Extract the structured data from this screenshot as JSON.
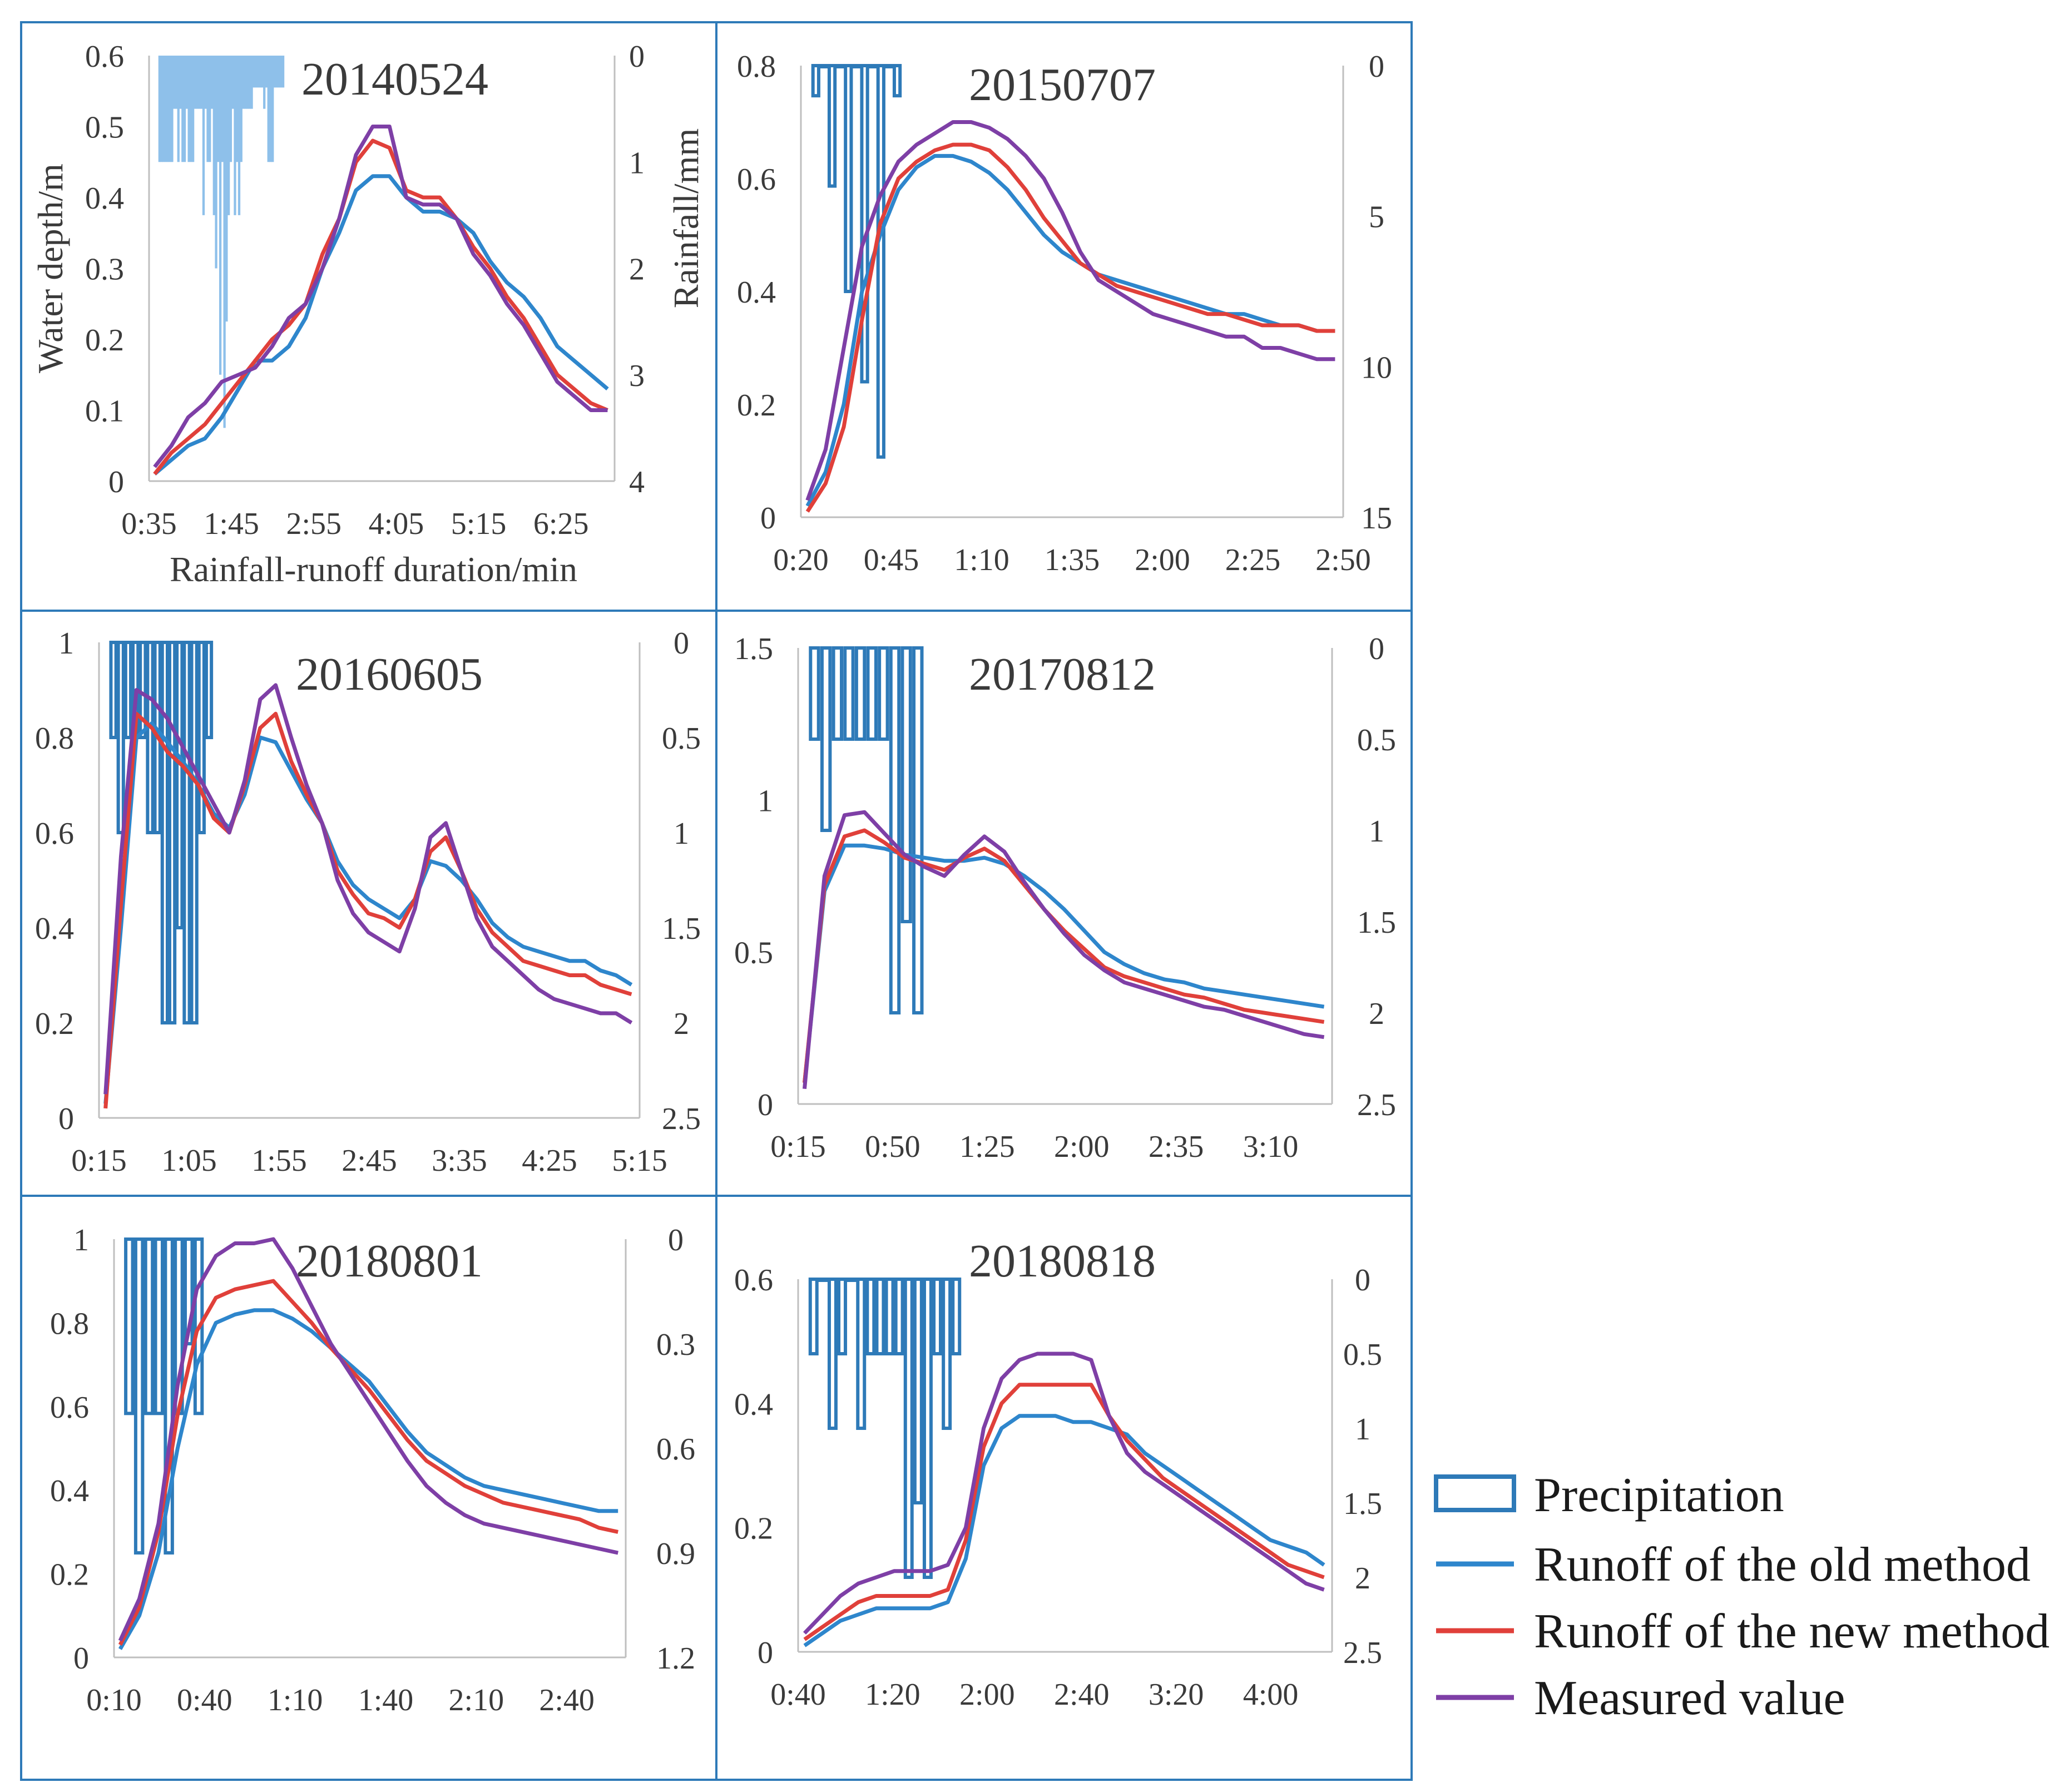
{
  "colors": {
    "precip": "#2e7ab8",
    "precip_fill": "#8ec0ea",
    "old": "#2e86cc",
    "new": "#e0403a",
    "measured": "#7e3fa6",
    "frame": "#2e7ab8",
    "axis": "#bfbfbf"
  },
  "legend": {
    "precipitation": "Precipitation",
    "old": "Runoff of the old method",
    "new": "Runoff of the new method",
    "measured": "Measured value"
  },
  "chart_data": [
    {
      "type": "line",
      "title": "20140524",
      "xlabel": "Rainfall-runoff duration/min",
      "ylabel": "Water depth/m",
      "y2label": "Rainfall/mm",
      "ylim": [
        0,
        0.6
      ],
      "y_ticks": [
        "0",
        "0.1",
        "0.2",
        "0.3",
        "0.4",
        "0.5",
        "0.6"
      ],
      "y2lim": [
        0,
        4
      ],
      "y2_ticks": [
        "0",
        "1",
        "2",
        "3",
        "4"
      ],
      "x_ticks": [
        "0:35",
        "1:45",
        "2:55",
        "4:05",
        "5:15",
        "6:25"
      ],
      "precip_fill": true,
      "precip_x_end": 0.29,
      "precip": [
        1.0,
        1.0,
        1.0,
        1.0,
        1.0,
        1.0,
        1.0,
        0.5,
        0.5,
        1.0,
        0.5,
        1.0,
        1.0,
        0.5,
        1.0,
        1.0,
        1.0,
        0.5,
        0.5,
        0.5,
        0.5,
        1.5,
        0.5,
        1.0,
        1.0,
        0.5,
        1.5,
        2.0,
        1.0,
        3.0,
        1.0,
        3.5,
        2.5,
        1.5,
        1.0,
        0.5,
        1.5,
        1.0,
        1.5,
        1.0,
        0.5,
        0.5,
        0.5,
        0.5,
        0.5,
        0.3,
        0.3,
        0.3,
        0.3,
        0.3,
        0.5,
        0.3,
        1.0,
        1.0,
        1.0,
        0.3,
        0.3,
        0.3,
        0.3,
        0.3
      ],
      "series": [
        {
          "name": "Runoff of the old method",
          "values": [
            0.01,
            0.03,
            0.05,
            0.06,
            0.09,
            0.13,
            0.17,
            0.17,
            0.19,
            0.23,
            0.3,
            0.35,
            0.41,
            0.43,
            0.43,
            0.4,
            0.38,
            0.38,
            0.37,
            0.35,
            0.31,
            0.28,
            0.26,
            0.23,
            0.19,
            0.17,
            0.15,
            0.13
          ]
        },
        {
          "name": "Runoff of the new method",
          "values": [
            0.01,
            0.04,
            0.06,
            0.08,
            0.11,
            0.14,
            0.17,
            0.2,
            0.22,
            0.25,
            0.32,
            0.37,
            0.45,
            0.48,
            0.47,
            0.41,
            0.4,
            0.4,
            0.37,
            0.33,
            0.3,
            0.26,
            0.23,
            0.19,
            0.15,
            0.13,
            0.11,
            0.1
          ]
        },
        {
          "name": "Measured value",
          "values": [
            0.02,
            0.05,
            0.09,
            0.11,
            0.14,
            0.15,
            0.16,
            0.19,
            0.23,
            0.25,
            0.3,
            0.37,
            0.46,
            0.5,
            0.5,
            0.4,
            0.39,
            0.39,
            0.37,
            0.32,
            0.29,
            0.25,
            0.22,
            0.18,
            0.14,
            0.12,
            0.1,
            0.1
          ]
        }
      ]
    },
    {
      "type": "line",
      "title": "20150707",
      "ylim": [
        0,
        0.8
      ],
      "y_ticks": [
        "0",
        "0.2",
        "0.4",
        "0.6",
        "0.8"
      ],
      "y2lim": [
        0,
        15
      ],
      "y2_ticks": [
        "0",
        "5",
        "10",
        "15"
      ],
      "x_ticks": [
        "0:20",
        "0:45",
        "1:10",
        "1:35",
        "2:00",
        "2:25",
        "2:50"
      ],
      "precip_x_end": 0.185,
      "precip": [
        1,
        0,
        4,
        0,
        7.5,
        0,
        10.5,
        0,
        13,
        0,
        1
      ],
      "series": [
        {
          "name": "Runoff of the old method",
          "values": [
            0.02,
            0.08,
            0.2,
            0.4,
            0.5,
            0.58,
            0.62,
            0.64,
            0.64,
            0.63,
            0.61,
            0.58,
            0.54,
            0.5,
            0.47,
            0.45,
            0.43,
            0.42,
            0.41,
            0.4,
            0.39,
            0.38,
            0.37,
            0.36,
            0.36,
            0.35,
            0.34,
            0.34,
            0.33,
            0.33
          ]
        },
        {
          "name": "Runoff of the new method",
          "values": [
            0.01,
            0.06,
            0.16,
            0.35,
            0.52,
            0.6,
            0.63,
            0.65,
            0.66,
            0.66,
            0.65,
            0.62,
            0.58,
            0.53,
            0.49,
            0.45,
            0.43,
            0.41,
            0.4,
            0.39,
            0.38,
            0.37,
            0.36,
            0.36,
            0.35,
            0.34,
            0.34,
            0.34,
            0.33,
            0.33
          ]
        },
        {
          "name": "Measured value",
          "values": [
            0.03,
            0.12,
            0.3,
            0.48,
            0.57,
            0.63,
            0.66,
            0.68,
            0.7,
            0.7,
            0.69,
            0.67,
            0.64,
            0.6,
            0.54,
            0.47,
            0.42,
            0.4,
            0.38,
            0.36,
            0.35,
            0.34,
            0.33,
            0.32,
            0.32,
            0.3,
            0.3,
            0.29,
            0.28,
            0.28
          ]
        }
      ]
    },
    {
      "type": "line",
      "title": "20160605",
      "ylim": [
        0,
        1
      ],
      "y_ticks": [
        "0",
        "0.2",
        "0.4",
        "0.6",
        "0.8",
        "1"
      ],
      "y2lim": [
        0,
        2.5
      ],
      "y2_ticks": [
        "0",
        "0.5",
        "1",
        "1.5",
        "2",
        "2.5"
      ],
      "x_ticks": [
        "0:15",
        "1:05",
        "1:55",
        "2:45",
        "3:35",
        "4:25",
        "5:15"
      ],
      "precip_x_end": 0.21,
      "precip": [
        0.5,
        1.0,
        0.5,
        0.5,
        0.5,
        1.0,
        1.0,
        2.0,
        2.0,
        1.5,
        2.0,
        2.0,
        1.0,
        0.5
      ],
      "series": [
        {
          "name": "Runoff of the old method",
          "values": [
            0.03,
            0.4,
            0.8,
            0.83,
            0.79,
            0.75,
            0.7,
            0.64,
            0.61,
            0.68,
            0.8,
            0.79,
            0.73,
            0.67,
            0.62,
            0.54,
            0.49,
            0.46,
            0.44,
            0.42,
            0.46,
            0.54,
            0.53,
            0.5,
            0.46,
            0.41,
            0.38,
            0.36,
            0.35,
            0.34,
            0.33,
            0.33,
            0.31,
            0.3,
            0.28
          ]
        },
        {
          "name": "Runoff of the new method",
          "values": [
            0.02,
            0.45,
            0.85,
            0.82,
            0.77,
            0.74,
            0.7,
            0.63,
            0.6,
            0.7,
            0.82,
            0.85,
            0.75,
            0.68,
            0.62,
            0.52,
            0.47,
            0.43,
            0.42,
            0.4,
            0.46,
            0.56,
            0.59,
            0.52,
            0.44,
            0.39,
            0.36,
            0.33,
            0.32,
            0.31,
            0.3,
            0.3,
            0.28,
            0.27,
            0.26
          ]
        },
        {
          "name": "Measured value",
          "values": [
            0.05,
            0.55,
            0.9,
            0.88,
            0.84,
            0.78,
            0.72,
            0.66,
            0.6,
            0.71,
            0.88,
            0.91,
            0.8,
            0.7,
            0.62,
            0.5,
            0.43,
            0.39,
            0.37,
            0.35,
            0.44,
            0.59,
            0.62,
            0.52,
            0.42,
            0.36,
            0.33,
            0.3,
            0.27,
            0.25,
            0.24,
            0.23,
            0.22,
            0.22,
            0.2
          ]
        }
      ]
    },
    {
      "type": "line",
      "title": "20170812",
      "ylim": [
        0,
        1.5
      ],
      "y_ticks": [
        "0",
        "0.5",
        "1",
        "1.5"
      ],
      "y2lim": [
        0,
        2.5
      ],
      "y2_ticks": [
        "0",
        "0.5",
        "1",
        "1.5",
        "2",
        "2.5"
      ],
      "x_ticks": [
        "0:15",
        "0:50",
        "1:25",
        "2:00",
        "2:35",
        "3:10"
      ],
      "precip_x_end": 0.235,
      "precip": [
        0.5,
        1.0,
        0.5,
        0.5,
        0.5,
        0.5,
        0.5,
        2.0,
        1.5,
        2.0
      ],
      "series": [
        {
          "name": "Runoff of the old method",
          "values": [
            0.07,
            0.7,
            0.85,
            0.85,
            0.84,
            0.82,
            0.81,
            0.8,
            0.8,
            0.81,
            0.79,
            0.75,
            0.7,
            0.64,
            0.57,
            0.5,
            0.46,
            0.43,
            0.41,
            0.4,
            0.38,
            0.37,
            0.36,
            0.35,
            0.34,
            0.33,
            0.32
          ]
        },
        {
          "name": "Runoff of the new method",
          "values": [
            0.07,
            0.72,
            0.88,
            0.9,
            0.86,
            0.81,
            0.79,
            0.77,
            0.81,
            0.84,
            0.8,
            0.72,
            0.64,
            0.57,
            0.51,
            0.45,
            0.42,
            0.4,
            0.38,
            0.36,
            0.35,
            0.33,
            0.31,
            0.3,
            0.29,
            0.28,
            0.27
          ]
        },
        {
          "name": "Measured value",
          "values": [
            0.05,
            0.75,
            0.95,
            0.96,
            0.89,
            0.82,
            0.78,
            0.75,
            0.82,
            0.88,
            0.83,
            0.73,
            0.64,
            0.56,
            0.49,
            0.44,
            0.4,
            0.38,
            0.36,
            0.34,
            0.32,
            0.31,
            0.29,
            0.27,
            0.25,
            0.23,
            0.22
          ]
        }
      ]
    },
    {
      "type": "line",
      "title": "20180801",
      "ylim": [
        0,
        1
      ],
      "y_ticks": [
        "0",
        "0.2",
        "0.4",
        "0.6",
        "0.8",
        "1"
      ],
      "y2lim": [
        0,
        1.2
      ],
      "y2_ticks": [
        "0",
        "0.3",
        "0.6",
        "0.9",
        "1.2"
      ],
      "x_ticks": [
        "0:10",
        "0:40",
        "1:10",
        "1:40",
        "2:10",
        "2:40"
      ],
      "precip_x_end": 0.175,
      "precip": [
        0.5,
        0.9,
        0.5,
        0.5,
        0.9,
        0.5,
        0.3,
        0.5
      ],
      "series": [
        {
          "name": "Runoff of the old method",
          "values": [
            0.02,
            0.1,
            0.25,
            0.5,
            0.7,
            0.8,
            0.82,
            0.83,
            0.83,
            0.81,
            0.78,
            0.74,
            0.7,
            0.66,
            0.6,
            0.54,
            0.49,
            0.46,
            0.43,
            0.41,
            0.4,
            0.39,
            0.38,
            0.37,
            0.36,
            0.35,
            0.35
          ]
        },
        {
          "name": "Runoff of the new method",
          "values": [
            0.03,
            0.12,
            0.3,
            0.58,
            0.78,
            0.86,
            0.88,
            0.89,
            0.9,
            0.85,
            0.8,
            0.74,
            0.69,
            0.64,
            0.58,
            0.52,
            0.47,
            0.44,
            0.41,
            0.39,
            0.37,
            0.36,
            0.35,
            0.34,
            0.33,
            0.31,
            0.3
          ]
        },
        {
          "name": "Measured value",
          "values": [
            0.04,
            0.14,
            0.32,
            0.65,
            0.88,
            0.96,
            0.99,
            0.99,
            1.0,
            0.93,
            0.84,
            0.75,
            0.68,
            0.61,
            0.54,
            0.47,
            0.41,
            0.37,
            0.34,
            0.32,
            0.31,
            0.3,
            0.29,
            0.28,
            0.27,
            0.26,
            0.25
          ]
        }
      ]
    },
    {
      "type": "line",
      "title": "20180818",
      "ylim": [
        0,
        0.6
      ],
      "y_ticks": [
        "0",
        "0.2",
        "0.4",
        "0.6"
      ],
      "y2lim": [
        0,
        2.5
      ],
      "y2_ticks": [
        "0",
        "0.5",
        "1",
        "1.5",
        "2",
        "2.5"
      ],
      "x_ticks": [
        "0:40",
        "1:20",
        "2:00",
        "2:40",
        "3:20",
        "4:00"
      ],
      "precip_x_end": 0.305,
      "precip": [
        0.5,
        0.0,
        1.0,
        0.5,
        0.0,
        1.0,
        0.5,
        0.5,
        0.5,
        0.5,
        2.0,
        1.5,
        2.0,
        0.5,
        1.0,
        0.5
      ],
      "series": [
        {
          "name": "Runoff of the old method",
          "values": [
            0.01,
            0.03,
            0.05,
            0.06,
            0.07,
            0.07,
            0.07,
            0.07,
            0.08,
            0.15,
            0.3,
            0.36,
            0.38,
            0.38,
            0.38,
            0.37,
            0.37,
            0.36,
            0.35,
            0.32,
            0.3,
            0.28,
            0.26,
            0.24,
            0.22,
            0.2,
            0.18,
            0.17,
            0.16,
            0.14
          ]
        },
        {
          "name": "Runoff of the new method",
          "values": [
            0.02,
            0.04,
            0.06,
            0.08,
            0.09,
            0.09,
            0.09,
            0.09,
            0.1,
            0.18,
            0.33,
            0.4,
            0.43,
            0.43,
            0.43,
            0.43,
            0.43,
            0.38,
            0.34,
            0.31,
            0.28,
            0.26,
            0.24,
            0.22,
            0.2,
            0.18,
            0.16,
            0.14,
            0.13,
            0.12
          ]
        },
        {
          "name": "Measured value",
          "values": [
            0.03,
            0.06,
            0.09,
            0.11,
            0.12,
            0.13,
            0.13,
            0.13,
            0.14,
            0.2,
            0.36,
            0.44,
            0.47,
            0.48,
            0.48,
            0.48,
            0.47,
            0.38,
            0.32,
            0.29,
            0.27,
            0.25,
            0.23,
            0.21,
            0.19,
            0.17,
            0.15,
            0.13,
            0.11,
            0.1
          ]
        }
      ]
    }
  ]
}
